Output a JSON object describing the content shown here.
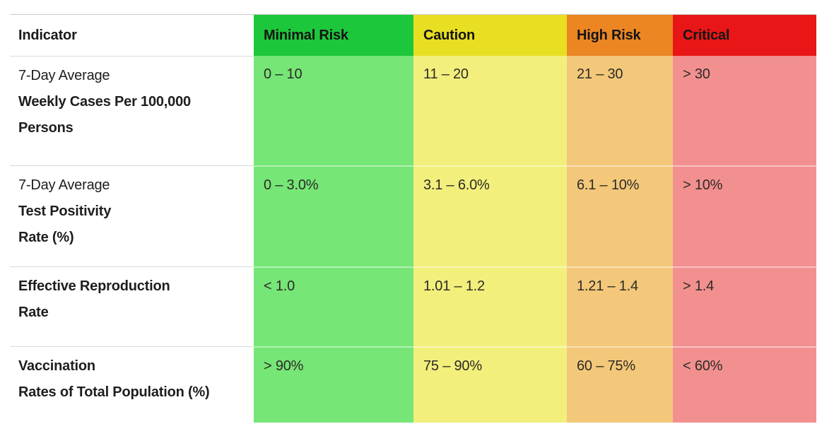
{
  "colors": {
    "header_green": "#1dc73b",
    "header_yellow": "#e8df22",
    "header_orange": "#eb8622",
    "header_red": "#e81616",
    "cell_green": "#76e676",
    "cell_yellow": "#f2ef7c",
    "cell_orange": "#f3c87a",
    "cell_red": "#f29090"
  },
  "header": {
    "indicator": "Indicator",
    "minimal": "Minimal Risk",
    "caution": "Caution",
    "high": "High Risk",
    "critical": "Critical"
  },
  "rows": [
    {
      "line1": "7-Day Average",
      "line2": "Weekly Cases Per 100,000",
      "line3": "Persons",
      "minimal": "0 – 10",
      "caution": "11 – 20",
      "high": "21 – 30",
      "critical": "> 30"
    },
    {
      "line1": "7-Day Average",
      "line2": "Test Positivity",
      "line3": "Rate (%)",
      "minimal": "0 – 3.0%",
      "caution": "3.1 – 6.0%",
      "high": "6.1 – 10%",
      "critical": "> 10%"
    },
    {
      "line1": "Effective Reproduction",
      "line2": "Rate",
      "minimal": "< 1.0",
      "caution": "1.01 – 1.2",
      "high": "1.21 – 1.4",
      "critical": "> 1.4"
    },
    {
      "line1": "Vaccination",
      "line2": "Rates of Total Population (%)",
      "minimal": "> 90%",
      "caution": "75 – 90%",
      "high": "60 – 75%",
      "critical": "< 60%"
    }
  ],
  "chart_data": {
    "type": "table",
    "title": "",
    "columns": [
      "Indicator",
      "Minimal Risk",
      "Caution",
      "High Risk",
      "Critical"
    ],
    "column_colors": [
      "#ffffff",
      "#1dc73b",
      "#e8df22",
      "#eb8622",
      "#e81616"
    ],
    "rows": [
      [
        "7-Day Average Weekly Cases Per 100,000 Persons",
        "0 – 10",
        "11 – 20",
        "21 – 30",
        "> 30"
      ],
      [
        "7-Day Average Test Positivity Rate (%)",
        "0 – 3.0%",
        "3.1 – 6.0%",
        "6.1 – 10%",
        "> 10%"
      ],
      [
        "Effective Reproduction Rate",
        "< 1.0",
        "1.01 – 1.2",
        "1.21 – 1.4",
        "> 1.4"
      ],
      [
        "Vaccination Rates of Total Population (%)",
        "> 90%",
        "75 – 90%",
        "60 – 75%",
        "< 60%"
      ]
    ]
  }
}
